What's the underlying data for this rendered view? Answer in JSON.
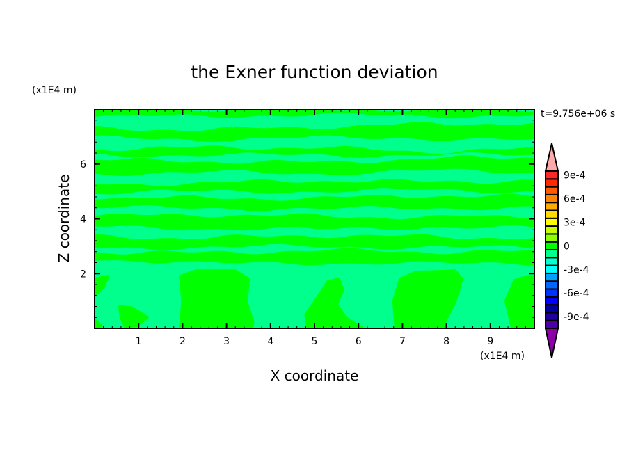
{
  "chart_data": {
    "type": "contour",
    "title": "the Exner function deviation",
    "xlabel": "X coordinate",
    "ylabel": "Z coordinate",
    "x_unit": "(x1E4 m)",
    "y_unit": "(x1E4 m)",
    "time_label": "t=9.756e+06 s",
    "xlim": [
      0,
      10
    ],
    "ylim": [
      0,
      8
    ],
    "x_ticks": [
      1,
      2,
      3,
      4,
      5,
      6,
      7,
      8,
      9
    ],
    "y_ticks": [
      2,
      4,
      6
    ],
    "background_level_color": "#00ff8c",
    "positive_level_color": "#00ff00",
    "colorbar": {
      "levels": [
        -0.001,
        -0.0009,
        -0.0008,
        -0.0007,
        -0.0006,
        -0.0005,
        -0.0004,
        -0.0003,
        -0.0002,
        -0.0001,
        0,
        0.0001,
        0.0002,
        0.0003,
        0.0004,
        0.0005,
        0.0006,
        0.0007,
        0.0008,
        0.0009,
        0.001
      ],
      "colors_low_to_high": [
        "#4b00a8",
        "#1e00a0",
        "#0000a0",
        "#0000ff",
        "#0032ff",
        "#0064ff",
        "#00a0ff",
        "#00ffff",
        "#00ffd2",
        "#00ff8c",
        "#00ff00",
        "#8cff00",
        "#c8ff00",
        "#ffff00",
        "#ffdc00",
        "#ffaa00",
        "#ff8200",
        "#ff5a00",
        "#ff2800",
        "#ff2828"
      ],
      "under_color": "#8c00a8",
      "over_color": "#ffaaaa",
      "tick_labels": [
        {
          "value": 0.0009,
          "label": "9e-4"
        },
        {
          "value": 0.0006,
          "label": "6e-4"
        },
        {
          "value": 0.0003,
          "label": "3e-4"
        },
        {
          "value": 0,
          "label": "0"
        },
        {
          "value": -0.0003,
          "label": "-3e-4"
        },
        {
          "value": -0.0006,
          "label": "-6e-4"
        },
        {
          "value": -0.0009,
          "label": "-9e-4"
        }
      ]
    },
    "positive_regions_bands": [
      {
        "x": [
          0,
          2.5,
          5,
          7.5,
          10
        ],
        "lower": [
          7.72,
          7.75,
          7.8,
          7.75,
          7.78
        ],
        "upper": [
          8,
          8,
          8,
          8,
          8
        ]
      },
      {
        "x": [
          0,
          2.5,
          5,
          7.5,
          10
        ],
        "lower": [
          6.95,
          6.9,
          6.95,
          6.95,
          6.85
        ],
        "upper": [
          7.3,
          7.25,
          7.35,
          7.45,
          7.5
        ]
      },
      {
        "x": [
          0,
          2.5,
          5,
          7.5,
          10
        ],
        "lower": [
          6.3,
          6.35,
          6.3,
          6.35,
          6.3
        ],
        "upper": [
          6.55,
          6.6,
          6.6,
          6.45,
          6.55
        ]
      },
      {
        "x": [
          0,
          2.5,
          5,
          7.5,
          10
        ],
        "lower": [
          5.65,
          5.7,
          5.65,
          5.75,
          5.7
        ],
        "upper": [
          6.15,
          6.1,
          6.05,
          6.2,
          6.25
        ]
      },
      {
        "x": [
          0,
          2.5,
          5,
          7.5,
          10
        ],
        "lower": [
          4.95,
          5.0,
          5.0,
          5.05,
          5.0
        ],
        "upper": [
          5.25,
          5.3,
          5.4,
          5.35,
          5.4
        ]
      },
      {
        "x": [
          0,
          2.5,
          5,
          7.5,
          10
        ],
        "lower": [
          4.4,
          4.4,
          4.35,
          4.4,
          4.4
        ],
        "upper": [
          4.8,
          4.75,
          4.75,
          4.85,
          4.8
        ]
      },
      {
        "x": [
          0,
          2.5,
          5,
          7.5,
          10
        ],
        "lower": [
          3.7,
          3.65,
          3.6,
          3.7,
          3.65
        ],
        "upper": [
          4.1,
          4.15,
          4.1,
          4.05,
          4.1
        ]
      },
      {
        "x": [
          0,
          2.5,
          5,
          7.5,
          10
        ],
        "lower": [
          2.95,
          2.95,
          3.0,
          2.95,
          2.95
        ],
        "upper": [
          3.35,
          3.3,
          3.4,
          3.35,
          3.3
        ]
      },
      {
        "x": [
          0,
          2.5,
          5,
          7.5,
          10
        ],
        "lower": [
          2.55,
          2.35,
          2.4,
          2.35,
          2.4
        ],
        "upper": [
          2.8,
          2.75,
          2.85,
          2.8,
          2.8
        ]
      }
    ],
    "positive_regions_blobs": [
      [
        [
          1.95,
          0
        ],
        [
          2.0,
          1.0
        ],
        [
          1.95,
          1.9
        ],
        [
          2.3,
          2.1
        ],
        [
          3.2,
          2.1
        ],
        [
          3.5,
          1.8
        ],
        [
          3.45,
          1.0
        ],
        [
          3.6,
          0.2
        ],
        [
          3.55,
          0
        ]
      ],
      [
        [
          4.85,
          0
        ],
        [
          4.8,
          0.5
        ],
        [
          5.1,
          1.2
        ],
        [
          5.3,
          1.7
        ],
        [
          5.55,
          1.8
        ],
        [
          5.65,
          1.4
        ],
        [
          5.5,
          0.9
        ],
        [
          5.7,
          0.4
        ],
        [
          6.1,
          0
        ]
      ],
      [
        [
          6.85,
          0
        ],
        [
          6.8,
          1.0
        ],
        [
          6.95,
          1.8
        ],
        [
          7.3,
          2.05
        ],
        [
          8.2,
          2.1
        ],
        [
          8.35,
          1.8
        ],
        [
          8.2,
          1.0
        ],
        [
          7.95,
          0.2
        ],
        [
          7.95,
          0
        ]
      ],
      [
        [
          9.5,
          0
        ],
        [
          9.35,
          1.0
        ],
        [
          9.55,
          1.75
        ],
        [
          9.85,
          1.9
        ],
        [
          10,
          1.9
        ],
        [
          10,
          0
        ]
      ],
      [
        [
          0.57,
          0.8
        ],
        [
          0.85,
          0.75
        ],
        [
          1.2,
          0.4
        ],
        [
          0.95,
          0.1
        ],
        [
          0.7,
          0.05
        ],
        [
          0.6,
          0.4
        ]
      ],
      [
        [
          0,
          1.8
        ],
        [
          0.3,
          1.9
        ],
        [
          0.2,
          1.5
        ],
        [
          0,
          1.2
        ]
      ],
      [
        [
          0,
          0.3
        ],
        [
          0.15,
          0.1
        ],
        [
          0,
          0
        ]
      ]
    ]
  }
}
